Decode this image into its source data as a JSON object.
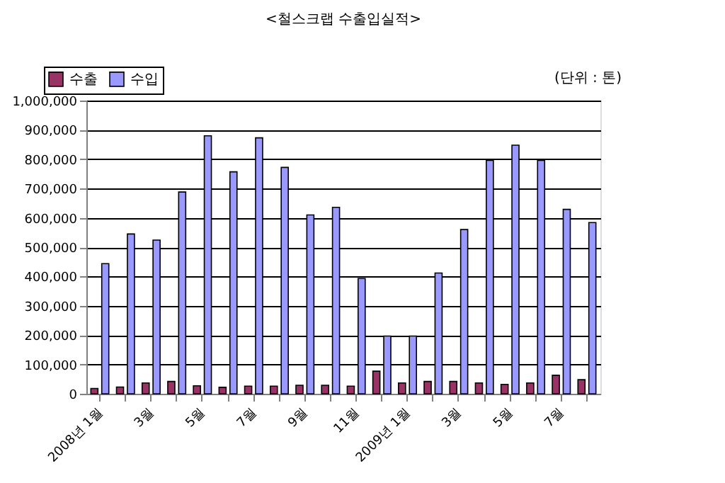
{
  "chart_data": {
    "type": "bar",
    "title": "<철스크랩 수출입실적>",
    "annotations": [
      "(단위 : 톤)"
    ],
    "categories": [
      "2008년 1월",
      null,
      "3월",
      null,
      "5월",
      null,
      "7월",
      null,
      "9월",
      null,
      "11월",
      null,
      "2009년 1월",
      null,
      "3월",
      null,
      "5월",
      null,
      "7월",
      null
    ],
    "series": [
      {
        "name": "수출",
        "color": "#993366",
        "values": [
          18000,
          23000,
          37000,
          42000,
          27000,
          22000,
          26000,
          26000,
          29000,
          29000,
          26000,
          77000,
          37000,
          42000,
          42000,
          37000,
          32000,
          37000,
          63000,
          48000
        ]
      },
      {
        "name": "수입",
        "color": "#9999ff",
        "values": [
          444000,
          545000,
          524000,
          688000,
          880000,
          757000,
          873000,
          772000,
          610000,
          636000,
          393000,
          197000,
          197000,
          412000,
          560000,
          796000,
          848000,
          796000,
          629000,
          584000
        ]
      }
    ],
    "ylim": [
      0,
      1000000
    ],
    "yticks": [
      0,
      {
        "value": 100000,
        "label": "100,000"
      },
      {
        "value": 200000,
        "label": "200,000"
      },
      {
        "value": 300000,
        "label": "300,000"
      },
      {
        "value": 400000,
        "label": "400,000"
      },
      {
        "value": 500000,
        "label": "500,000"
      },
      {
        "value": 600000,
        "label": "600,000"
      },
      {
        "value": 700000,
        "label": "700,000"
      },
      {
        "value": 800000,
        "label": "800,000"
      },
      {
        "value": 900000,
        "label": "900,000"
      },
      {
        "value": 1000000,
        "label": "1,000,000"
      }
    ],
    "grid": "y",
    "legend": "top left"
  }
}
